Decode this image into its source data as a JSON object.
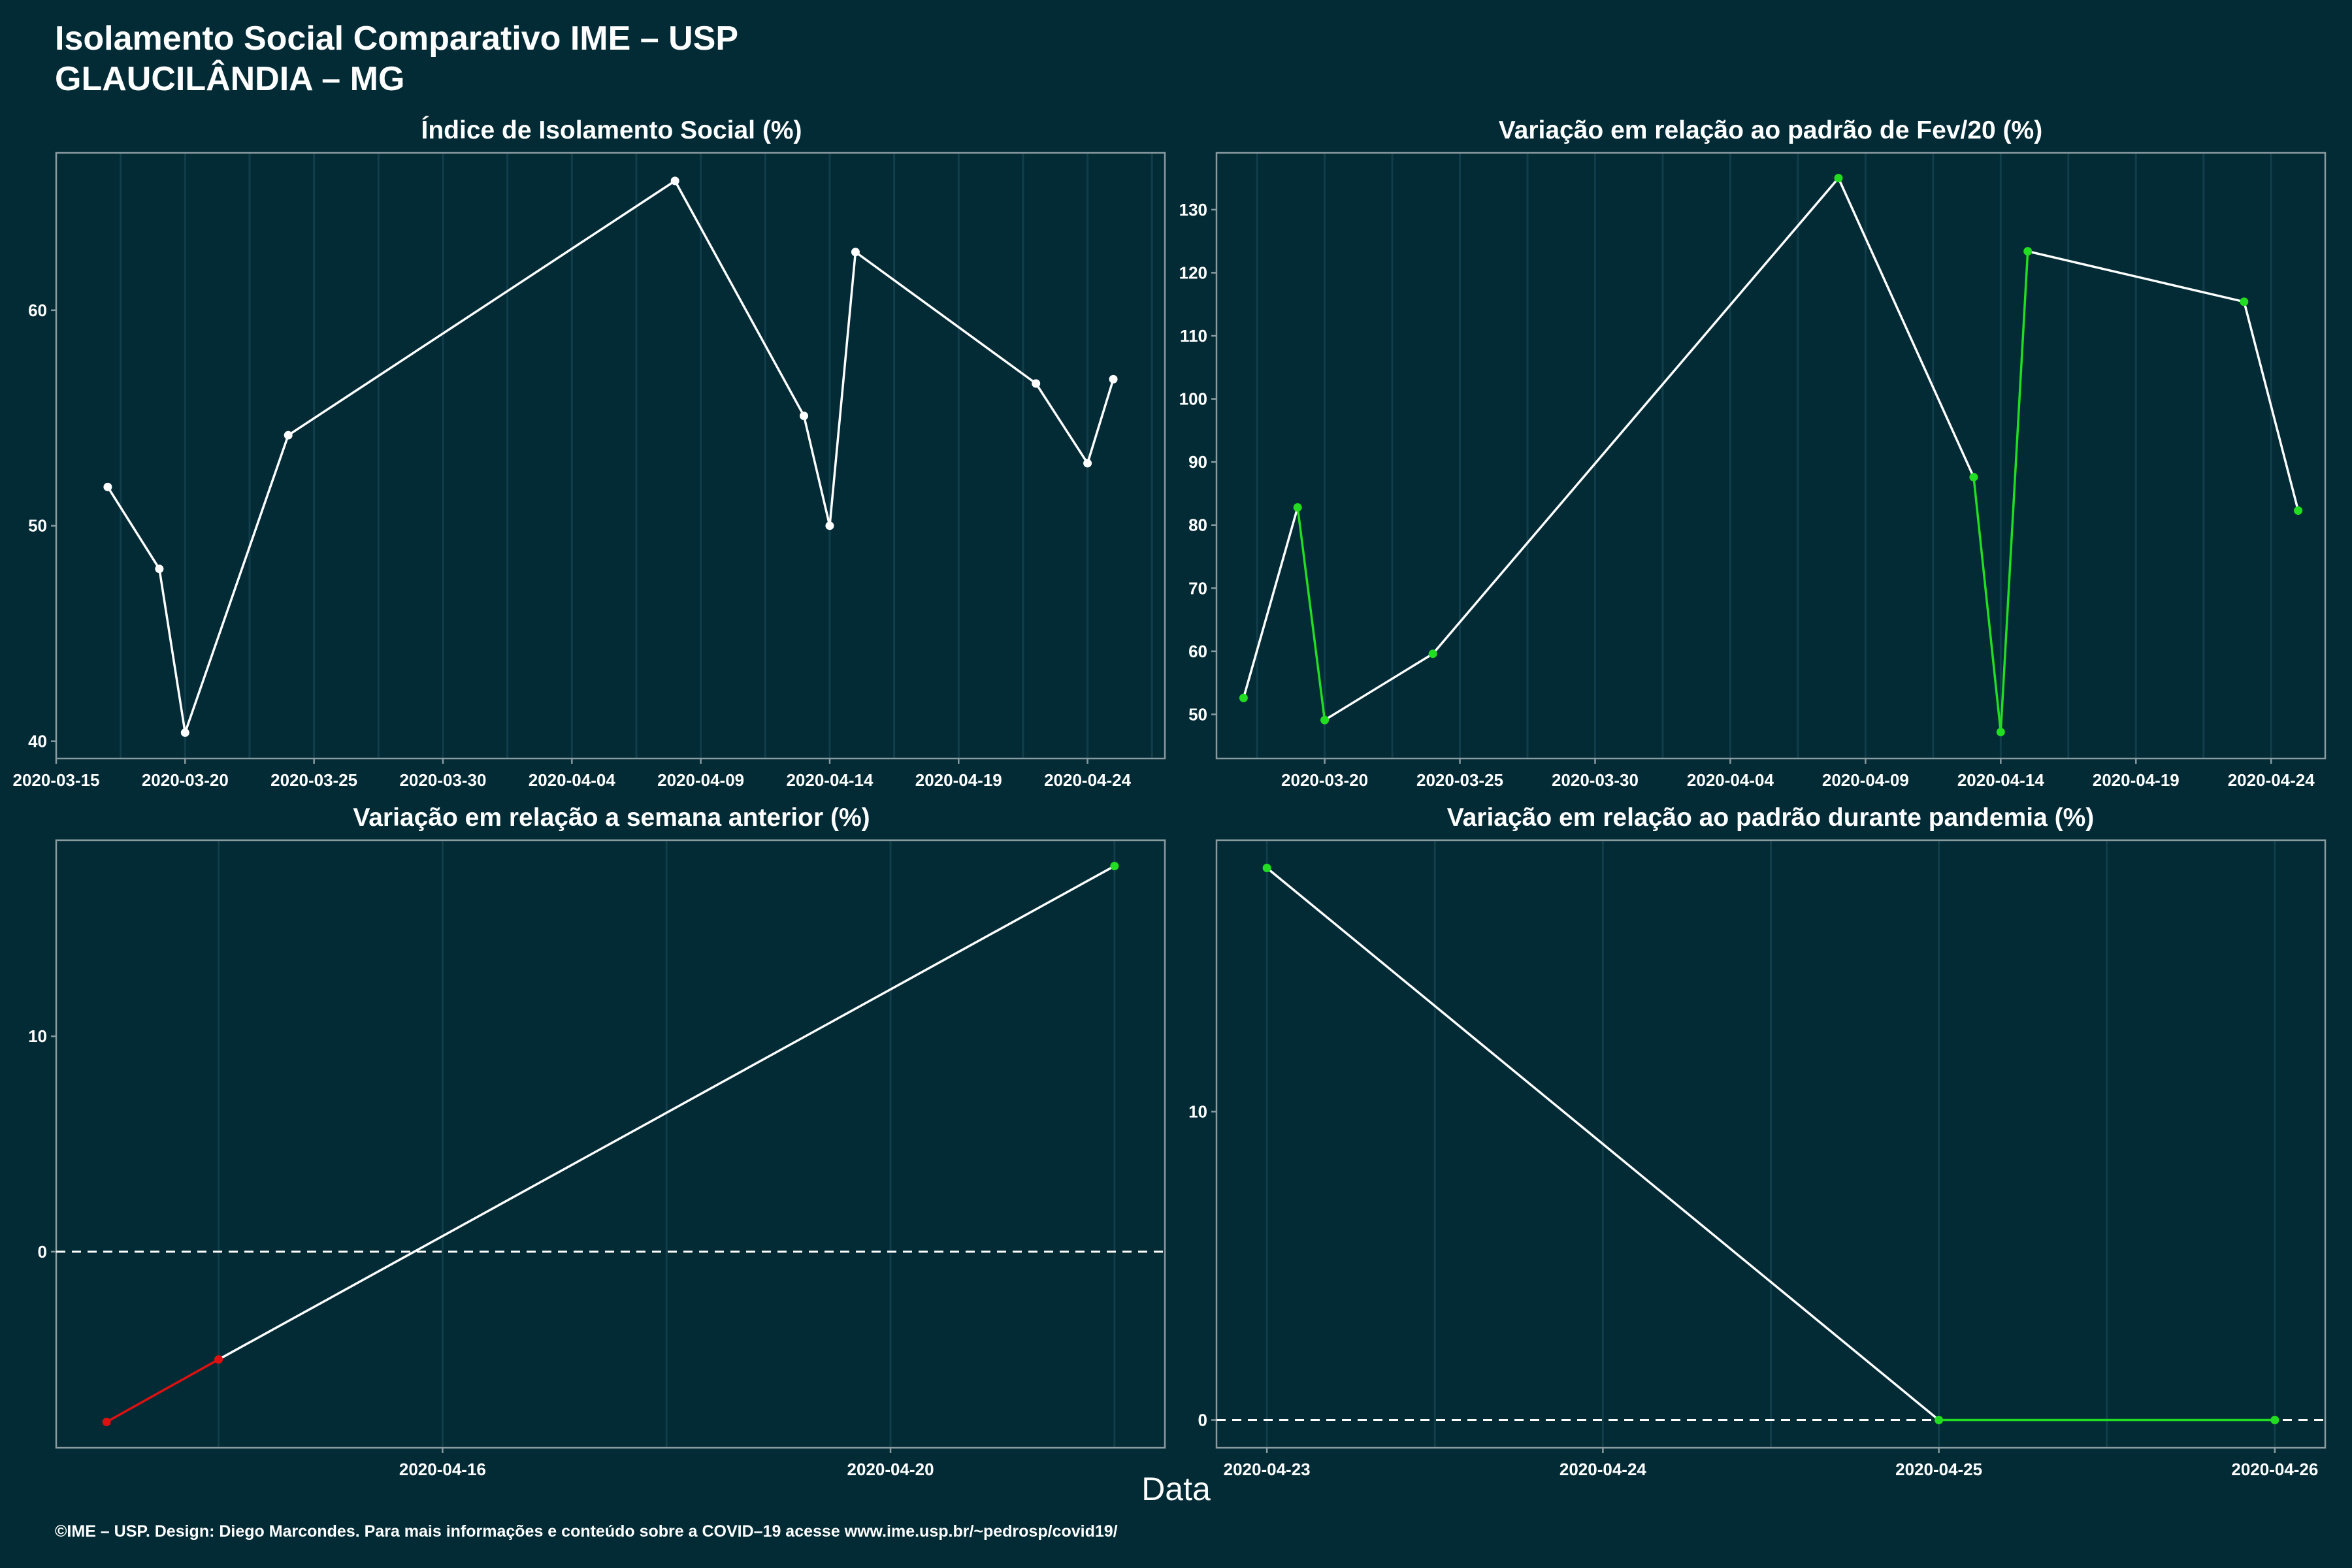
{
  "title_line1": "Isolamento Social Comparativo IME – USP",
  "title_line2": "GLAUCILÂNDIA – MG",
  "xlabel": "Data",
  "footer": "©IME – USP. Design: Diego Marcondes. Para mais informações e conteúdo sobre a COVID–19 acesse www.ime.usp.br/~pedrosp/covid19/",
  "colors": {
    "background": "#022b36",
    "line": "#ffffff",
    "positive": "#22dd22",
    "negative": "#dd1111",
    "grid": "#113e4a"
  },
  "chart_data": [
    {
      "type": "line",
      "title": "Índice de Isolamento Social (%)",
      "x": [
        "2020-03-17",
        "2020-03-19",
        "2020-03-20",
        "2020-03-24",
        "2020-04-08",
        "2020-04-13",
        "2020-04-14",
        "2020-04-15",
        "2020-04-22",
        "2020-04-24",
        "2020-04-25"
      ],
      "y": [
        51.8,
        48.0,
        40.4,
        54.2,
        66.0,
        55.1,
        50.0,
        62.7,
        56.6,
        52.9,
        56.8
      ],
      "xticks": [
        "2020-03-15",
        "2020-03-20",
        "2020-03-25",
        "2020-03-30",
        "2020-04-04",
        "2020-04-09",
        "2020-04-14",
        "2020-04-19",
        "2020-04-24"
      ],
      "yticks": [
        40,
        50,
        60
      ],
      "xlim": [
        "2020-03-15",
        "2020-04-27"
      ],
      "ylim": [
        39.2,
        67.3
      ],
      "point_colors": [
        "white",
        "white",
        "white",
        "white",
        "white",
        "white",
        "white",
        "white",
        "white",
        "white",
        "white"
      ]
    },
    {
      "type": "line",
      "title": "Variação em relação ao padrão de Fev/20 (%)",
      "x": [
        "2020-03-17",
        "2020-03-19",
        "2020-03-20",
        "2020-03-24",
        "2020-04-08",
        "2020-04-13",
        "2020-04-14",
        "2020-04-15",
        "2020-04-23",
        "2020-04-25"
      ],
      "y": [
        52.6,
        82.8,
        49.1,
        59.6,
        135.0,
        87.6,
        47.2,
        123.4,
        115.4,
        82.3
      ],
      "xticks": [
        "2020-03-20",
        "2020-03-25",
        "2020-03-30",
        "2020-04-04",
        "2020-04-09",
        "2020-04-14",
        "2020-04-19",
        "2020-04-24"
      ],
      "yticks": [
        50,
        60,
        70,
        80,
        90,
        100,
        110,
        120,
        130
      ],
      "xlim": [
        "2020-03-16",
        "2020-04-26"
      ],
      "ylim": [
        43,
        139
      ],
      "point_colors": [
        "green",
        "green",
        "green",
        "green",
        "green",
        "green",
        "green",
        "green",
        "green",
        "green"
      ],
      "segment_colors": [
        "white",
        "green",
        "white",
        "white",
        "white",
        "green",
        "green",
        "white",
        "white"
      ]
    },
    {
      "type": "line",
      "title": "Variação em relação a semana anterior (%)",
      "x": [
        "2020-04-13",
        "2020-04-14",
        "2020-04-22"
      ],
      "y": [
        -7.9,
        -5.0,
        17.9
      ],
      "xticks": [
        "2020-04-16",
        "2020-04-20"
      ],
      "yticks": [
        0,
        10
      ],
      "xlim": [
        "2020-04-12.55",
        "2020-04-22.45"
      ],
      "ylim": [
        -9.1,
        19.1
      ],
      "reference_line": 0,
      "point_colors": [
        "red",
        "red",
        "green"
      ],
      "segment_colors": [
        "red",
        "white"
      ]
    },
    {
      "type": "line",
      "title": "Variação em relação ao padrão durante pandemia (%)",
      "x": [
        "2020-04-23",
        "2020-04-25",
        "2020-04-26"
      ],
      "y": [
        17.9,
        0.0,
        0.0
      ],
      "xticks": [
        "2020-04-23",
        "2020-04-24",
        "2020-04-25",
        "2020-04-26"
      ],
      "yticks": [
        0,
        10
      ],
      "xlim": [
        "2020-04-22.85",
        "2020-04-26.15"
      ],
      "ylim": [
        -0.9,
        18.8
      ],
      "reference_line": 0,
      "point_colors": [
        "green",
        "green",
        "green"
      ],
      "segment_colors": [
        "white",
        "green"
      ]
    }
  ]
}
